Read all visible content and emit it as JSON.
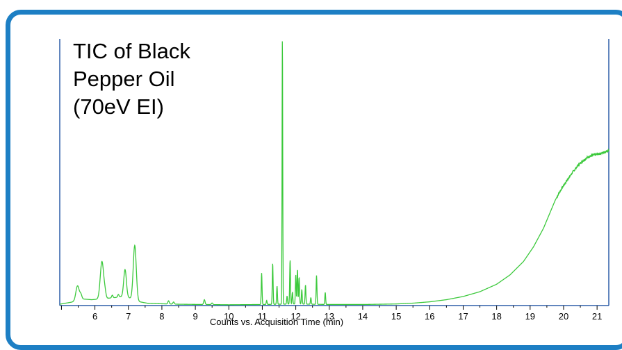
{
  "chart_data": {
    "type": "line",
    "title_lines": [
      "TIC of Black",
      "Pepper Oil",
      "(70eV EI)"
    ],
    "xlabel": "Counts vs. Acquisition Time (min)",
    "ylabel": "",
    "xlim": [
      4.95,
      21.35
    ],
    "ylim": [
      0,
      100
    ],
    "x_ticks": [
      6,
      7,
      8,
      9,
      10,
      11,
      12,
      13,
      14,
      15,
      16,
      17,
      18,
      19,
      20,
      21
    ],
    "x_minor_step": 0.5,
    "grid": false,
    "line_color": "#3cc93c",
    "axis_color": "#2f5fa8",
    "baseline": [
      [
        4.95,
        0.5
      ],
      [
        5.4,
        1.5
      ],
      [
        5.6,
        2.5
      ],
      [
        5.9,
        2.2
      ],
      [
        6.1,
        2.4
      ],
      [
        6.6,
        3.0
      ],
      [
        6.9,
        3.5
      ],
      [
        7.3,
        1.5
      ],
      [
        7.6,
        0.8
      ],
      [
        8.5,
        0.5
      ],
      [
        10.0,
        0.3
      ],
      [
        11.0,
        0.4
      ],
      [
        12.0,
        0.6
      ],
      [
        13.0,
        0.4
      ],
      [
        14.0,
        0.4
      ],
      [
        15.0,
        0.6
      ],
      [
        15.5,
        0.9
      ],
      [
        16.0,
        1.4
      ],
      [
        16.5,
        2.2
      ],
      [
        17.0,
        3.4
      ],
      [
        17.5,
        5.2
      ],
      [
        18.0,
        8.0
      ],
      [
        18.4,
        11.5
      ],
      [
        18.8,
        16.5
      ],
      [
        19.1,
        22.0
      ],
      [
        19.4,
        29.0
      ],
      [
        19.6,
        35.0
      ],
      [
        19.75,
        39.5
      ],
      [
        19.9,
        43.0
      ],
      [
        20.1,
        47.0
      ],
      [
        20.3,
        50.5
      ],
      [
        20.5,
        53.5
      ],
      [
        20.7,
        55.5
      ],
      [
        20.9,
        56.5
      ],
      [
        21.1,
        57.0
      ],
      [
        21.35,
        58.2
      ]
    ],
    "peaks": [
      {
        "x": 5.48,
        "h": 5.5,
        "w": 0.05
      },
      {
        "x": 5.58,
        "h": 1.5,
        "w": 0.03
      },
      {
        "x": 6.21,
        "h": 14.0,
        "w": 0.05
      },
      {
        "x": 6.3,
        "h": 2.0,
        "w": 0.03
      },
      {
        "x": 6.52,
        "h": 1.0,
        "w": 0.02
      },
      {
        "x": 6.7,
        "h": 1.0,
        "w": 0.02
      },
      {
        "x": 6.9,
        "h": 10.0,
        "w": 0.04
      },
      {
        "x": 7.19,
        "h": 20.5,
        "w": 0.045
      },
      {
        "x": 8.2,
        "h": 1.2,
        "w": 0.02
      },
      {
        "x": 8.35,
        "h": 0.8,
        "w": 0.02
      },
      {
        "x": 9.27,
        "h": 1.8,
        "w": 0.02
      },
      {
        "x": 9.5,
        "h": 0.6,
        "w": 0.02
      },
      {
        "x": 10.98,
        "h": 11.8,
        "w": 0.012
      },
      {
        "x": 11.13,
        "h": 1.5,
        "w": 0.012
      },
      {
        "x": 11.31,
        "h": 15.4,
        "w": 0.012
      },
      {
        "x": 11.44,
        "h": 6.8,
        "w": 0.012
      },
      {
        "x": 11.6,
        "h": 100,
        "w": 0.01
      },
      {
        "x": 11.74,
        "h": 3.0,
        "w": 0.012
      },
      {
        "x": 11.83,
        "h": 16.5,
        "w": 0.012
      },
      {
        "x": 11.9,
        "h": 4.5,
        "w": 0.012
      },
      {
        "x": 12.0,
        "h": 11.0,
        "w": 0.012
      },
      {
        "x": 12.05,
        "h": 13.0,
        "w": 0.012
      },
      {
        "x": 12.1,
        "h": 10.0,
        "w": 0.012
      },
      {
        "x": 12.18,
        "h": 5.5,
        "w": 0.012
      },
      {
        "x": 12.29,
        "h": 7.2,
        "w": 0.012
      },
      {
        "x": 12.45,
        "h": 2.5,
        "w": 0.012
      },
      {
        "x": 12.62,
        "h": 10.8,
        "w": 0.012
      },
      {
        "x": 12.88,
        "h": 4.5,
        "w": 0.012
      }
    ]
  }
}
